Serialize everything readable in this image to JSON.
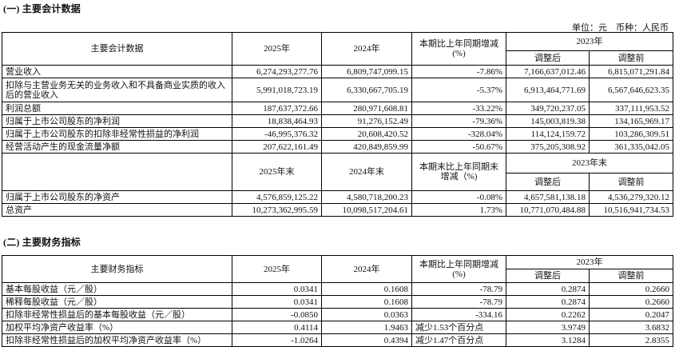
{
  "section1": {
    "title": "(一) 主要会计数据",
    "unit_line": "单位：元　币种：人民币",
    "header": {
      "item": "主要会计数据",
      "y2025": "2025年",
      "y2024": "2024年",
      "change": "本期比上年同期增减(%)",
      "y2023": "2023年",
      "adjusted": "调整后",
      "before": "调整前"
    },
    "rows": [
      {
        "label": "营业收入",
        "v2025": "6,274,293,277.76",
        "v2024": "6,809,747,099.15",
        "change": "-7.86%",
        "adj": "7,166,637,012.46",
        "pre": "6,815,071,291.84"
      },
      {
        "label": "扣除与主营业务无关的业务收入和不具备商业实质的收入后的营业收入",
        "v2025": "5,991,018,723.19",
        "v2024": "6,330,667,705.19",
        "change": "-5.37%",
        "adj": "6,913,464,771.69",
        "pre": "6,567,646,623.35"
      },
      {
        "label": "利润总额",
        "v2025": "187,637,372.66",
        "v2024": "280,971,608.81",
        "change": "-33.22%",
        "adj": "349,720,237.05",
        "pre": "337,111,953.52"
      },
      {
        "label": "归属于上市公司股东的净利润",
        "v2025": "18,838,464.93",
        "v2024": "91,276,152.49",
        "change": "-79.36%",
        "adj": "145,003,819.38",
        "pre": "134,165,969.17"
      },
      {
        "label": "归属于上市公司股东的扣除非经常性损益的净利润",
        "v2025": "-46,995,376.32",
        "v2024": "20,608,420.52",
        "change": "-328.04%",
        "adj": "114,124,159.72",
        "pre": "103,286,309.51"
      },
      {
        "label": "经营活动产生的现金流量净额",
        "v2025": "207,622,161.49",
        "v2024": "420,849,859.99",
        "change": "-50.67%",
        "adj": "375,205,308.92",
        "pre": "361,335,042.05"
      }
    ],
    "header2": {
      "y2025": "2025年末",
      "y2024": "2024年末",
      "change": "本期末比上年同期末增减（%)",
      "y2023": "2023年末",
      "adjusted": "调整后",
      "before": "调整前"
    },
    "rows2": [
      {
        "label": "归属于上市公司股东的净资产",
        "v2025": "4,576,859,125.22",
        "v2024": "4,580,718,200.23",
        "change": "-0.08%",
        "adj": "4,657,581,138.18",
        "pre": "4,536,279,320.12"
      },
      {
        "label": "总资产",
        "v2025": "10,273,362,995.59",
        "v2024": "10,098,517,204.61",
        "change": "1.73%",
        "adj": "10,771,070,484.88",
        "pre": "10,516,941,734.53"
      }
    ]
  },
  "section2": {
    "title": "(二) 主要财务指标",
    "header": {
      "item": "主要财务指标",
      "y2025": "2025年",
      "y2024": "2024年",
      "change": "本期比上年同期增减(%)",
      "y2023": "2023年",
      "adjusted": "调整后",
      "before": "调整前"
    },
    "rows": [
      {
        "label": "基本每股收益（元／股）",
        "v2025": "0.0341",
        "v2024": "0.1608",
        "change": "-78.79",
        "adj": "0.2874",
        "pre": "0.2660"
      },
      {
        "label": "稀释每股收益（元／股）",
        "v2025": "0.0341",
        "v2024": "0.1608",
        "change": "-78.79",
        "adj": "0.2874",
        "pre": "0.2660"
      },
      {
        "label": "扣除非经常性损益后的基本每股收益（元／股）",
        "v2025": "-0.0850",
        "v2024": "0.0363",
        "change": "-334.16",
        "adj": "0.2262",
        "pre": "0.2047"
      },
      {
        "label": "加权平均净资产收益率（%）",
        "v2025": "0.4114",
        "v2024": "1.9463",
        "change": "减少1.53个百分点",
        "adj": "3.9749",
        "pre": "3.6832"
      },
      {
        "label": "扣除非经常性损益后的加权平均净资产收益率（%）",
        "v2025": "-1.0264",
        "v2024": "0.4394",
        "change": "减少1.47个百分点",
        "adj": "3.1284",
        "pre": "2.8355"
      }
    ]
  }
}
